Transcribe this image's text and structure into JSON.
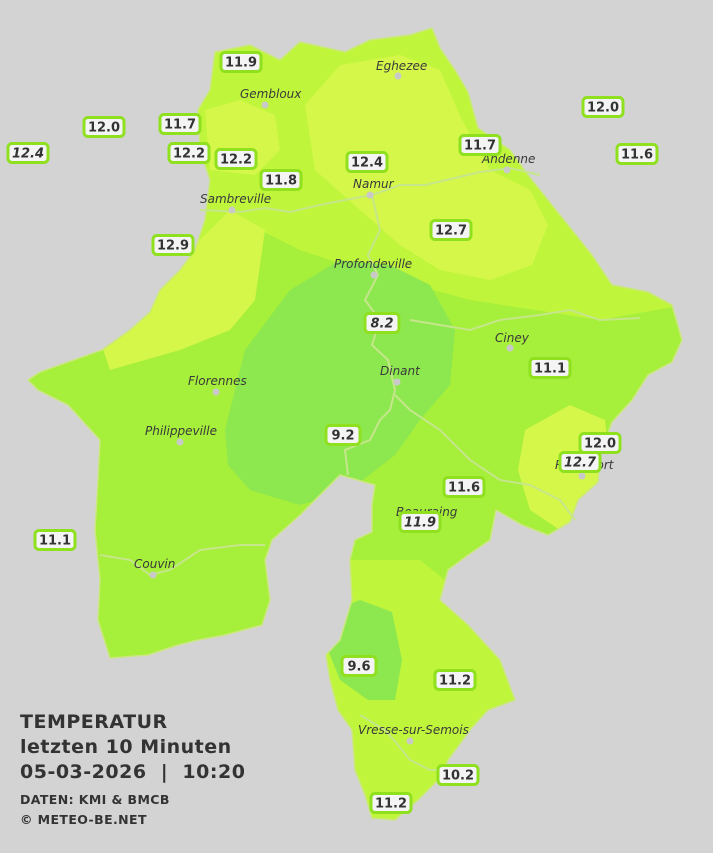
{
  "info": {
    "title": "TEMPERATUR",
    "subtitle": "letzten 10 Minuten",
    "datetime": "05-03-2026  |  10:20",
    "source": "DATEN: KMI & BMCB",
    "copyright": "© METEO-BE.NET"
  },
  "colors": {
    "background": "#d3d3d3",
    "zone_light": "#bff53a",
    "zone_mid": "#a6ef3a",
    "zone_dark": "#8de84f",
    "zone_yellow": "#d5f74a",
    "rivers": "#c5e68a",
    "box_border": "#8fe01f"
  },
  "cities": [
    {
      "id": "eghezee",
      "name": "Eghezee"
    },
    {
      "id": "gembloux",
      "name": "Gembloux"
    },
    {
      "id": "andenne",
      "name": "Andenne"
    },
    {
      "id": "namur",
      "name": "Namur"
    },
    {
      "id": "sambreville",
      "name": "Sambreville"
    },
    {
      "id": "profondeville",
      "name": "Profondeville"
    },
    {
      "id": "ciney",
      "name": "Ciney"
    },
    {
      "id": "dinant",
      "name": "Dinant"
    },
    {
      "id": "florennes",
      "name": "Florennes"
    },
    {
      "id": "philippeville",
      "name": "Philippeville"
    },
    {
      "id": "beauraing",
      "name": "Beauraing"
    },
    {
      "id": "rochefort",
      "name": "Rochefort"
    },
    {
      "id": "couvin",
      "name": "Couvin"
    },
    {
      "id": "vresse",
      "name": "Vresse-sur-Semois"
    }
  ],
  "temperatures": [
    {
      "id": "t1",
      "value": "11.9",
      "italic": false
    },
    {
      "id": "t2",
      "value": "12.0",
      "italic": false
    },
    {
      "id": "t3",
      "value": "12.4",
      "italic": true
    },
    {
      "id": "t4",
      "value": "12.0",
      "italic": false
    },
    {
      "id": "t5",
      "value": "11.7",
      "italic": false
    },
    {
      "id": "t6",
      "value": "12.2",
      "italic": false
    },
    {
      "id": "t7",
      "value": "12.2",
      "italic": false
    },
    {
      "id": "t8",
      "value": "11.8",
      "italic": false
    },
    {
      "id": "t9",
      "value": "12.4",
      "italic": false
    },
    {
      "id": "t10",
      "value": "11.7",
      "italic": false
    },
    {
      "id": "t11",
      "value": "11.6",
      "italic": false
    },
    {
      "id": "t12",
      "value": "12.9",
      "italic": false
    },
    {
      "id": "t13",
      "value": "12.7",
      "italic": false
    },
    {
      "id": "t14",
      "value": "8.2",
      "italic": true
    },
    {
      "id": "t15",
      "value": "11.1",
      "italic": false
    },
    {
      "id": "t16",
      "value": "9.2",
      "italic": false
    },
    {
      "id": "t17",
      "value": "12.0",
      "italic": false
    },
    {
      "id": "t18",
      "value": "12.7",
      "italic": true
    },
    {
      "id": "t19",
      "value": "11.6",
      "italic": false
    },
    {
      "id": "t20",
      "value": "11.9",
      "italic": true
    },
    {
      "id": "t21",
      "value": "11.1",
      "italic": false
    },
    {
      "id": "t22",
      "value": "9.6",
      "italic": false
    },
    {
      "id": "t23",
      "value": "11.2",
      "italic": false
    },
    {
      "id": "t24",
      "value": "10.2",
      "italic": false
    },
    {
      "id": "t25",
      "value": "11.2",
      "italic": false
    }
  ]
}
